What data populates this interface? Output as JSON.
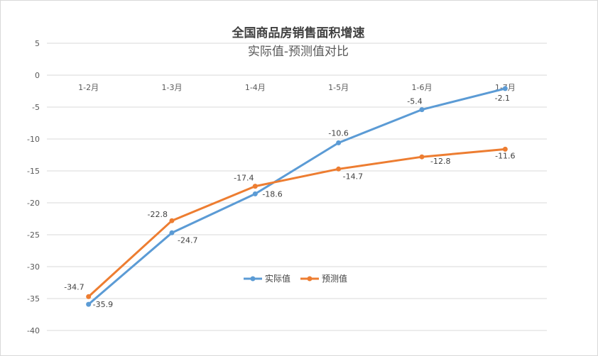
{
  "chart_data": {
    "type": "line",
    "title": "全国商品房销售面积增速",
    "subtitle": "实际值-预测值对比",
    "categories": [
      "1-2月",
      "1-3月",
      "1-4月",
      "1-5月",
      "1-6月",
      "1-7月"
    ],
    "series": [
      {
        "name": "实际值",
        "color": "#5B9BD5",
        "values": [
          -35.9,
          -24.7,
          -18.6,
          -10.6,
          -5.4,
          -2.1
        ]
      },
      {
        "name": "预测值",
        "color": "#ED7D31",
        "values": [
          -34.7,
          -22.8,
          -17.4,
          -14.7,
          -12.8,
          -11.6
        ]
      }
    ],
    "ylim": [
      -40,
      5
    ],
    "yticks": [
      5,
      0,
      -5,
      -10,
      -15,
      -20,
      -25,
      -30,
      -35,
      -40
    ],
    "grid": true,
    "legend": "center"
  }
}
